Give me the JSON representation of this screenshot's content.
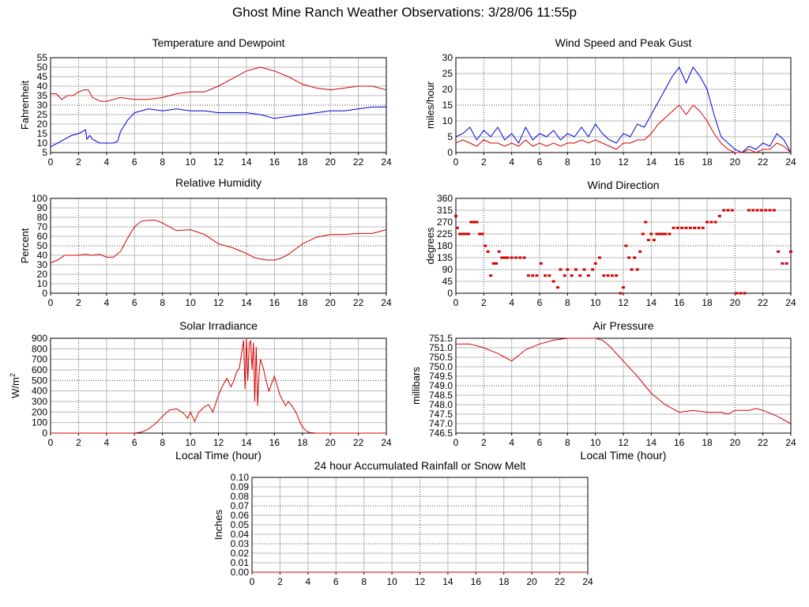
{
  "page": {
    "title": "Ghost Mine Ranch Weather Observations: 3/28/06 11:55p"
  },
  "chart_data": [
    {
      "id": "temperature",
      "type": "line",
      "title": "Temperature and Dewpoint",
      "xlabel": "",
      "ylabel": "Fahrenheit",
      "xlim": [
        0,
        24
      ],
      "ylim": [
        5,
        55
      ],
      "xticks": [
        "0",
        "2",
        "4",
        "6",
        "8",
        "10",
        "12",
        "14",
        "16",
        "18",
        "20",
        "22",
        "24"
      ],
      "yticks": [
        "5",
        "10",
        "15",
        "20",
        "25",
        "30",
        "35",
        "40",
        "45",
        "50",
        "55"
      ],
      "grid": true,
      "series": [
        {
          "color": "#d40000",
          "x": [
            0,
            0.4,
            0.8,
            1.2,
            1.6,
            2,
            2.4,
            2.7,
            3,
            3.6,
            4,
            5,
            6,
            7,
            8,
            9,
            10,
            11,
            12,
            13,
            14,
            14.5,
            15,
            15.5,
            16,
            17,
            18,
            19,
            20,
            21,
            22,
            23,
            24
          ],
          "y": [
            36,
            36,
            33,
            35,
            35,
            37,
            38,
            38,
            34,
            32,
            32,
            34,
            33,
            33,
            34,
            36,
            37,
            37,
            40,
            44,
            48,
            49,
            50,
            49,
            48,
            45,
            41,
            39,
            38,
            39,
            40,
            40,
            38
          ]
        },
        {
          "color": "#0000d4",
          "x": [
            0,
            0.5,
            1,
            1.5,
            2,
            2.5,
            2.6,
            2.8,
            3,
            3.5,
            4,
            4.5,
            4.8,
            5,
            5.5,
            6,
            7,
            8,
            9,
            10,
            11,
            12,
            13,
            14,
            15,
            16,
            17,
            18,
            19,
            20,
            21,
            22,
            23,
            24
          ],
          "y": [
            8,
            10,
            12,
            14,
            15,
            17,
            12,
            14,
            12,
            10,
            10,
            10,
            11,
            16,
            22,
            26,
            28,
            27,
            28,
            27,
            27,
            26,
            26,
            26,
            25,
            23,
            24,
            25,
            26,
            27,
            27,
            28,
            29,
            29
          ]
        }
      ]
    },
    {
      "id": "wind-speed",
      "type": "line",
      "title": "Wind Speed and Peak Gust",
      "xlabel": "",
      "ylabel": "miles/hour",
      "xlim": [
        0,
        24
      ],
      "ylim": [
        0,
        30
      ],
      "xticks": [
        "0",
        "2",
        "4",
        "6",
        "8",
        "10",
        "12",
        "14",
        "16",
        "18",
        "20",
        "22",
        "24"
      ],
      "yticks": [
        "0",
        "5",
        "10",
        "15",
        "20",
        "25",
        "30"
      ],
      "grid": true,
      "series": [
        {
          "color": "#0000d4",
          "x": [
            0,
            0.5,
            1,
            1.5,
            2,
            2.5,
            3,
            3.5,
            4,
            4.5,
            5,
            5.5,
            6,
            6.5,
            7,
            7.5,
            8,
            8.5,
            9,
            9.5,
            10,
            10.5,
            11,
            11.5,
            12,
            12.5,
            13,
            13.5,
            14,
            14.5,
            15,
            15.5,
            16,
            16.5,
            17,
            17.5,
            18,
            18.5,
            19,
            19.5,
            20,
            20.5,
            21,
            21.5,
            22,
            22.5,
            23,
            23.5,
            24
          ],
          "y": [
            5,
            6,
            8,
            4,
            7,
            5,
            8,
            4,
            6,
            3,
            8,
            4,
            6,
            5,
            7,
            4,
            6,
            5,
            8,
            5,
            9,
            6,
            4,
            3,
            6,
            5,
            9,
            8,
            12,
            16,
            20,
            24,
            27,
            22,
            27,
            24,
            20,
            12,
            5,
            3,
            1,
            0,
            2,
            1,
            3,
            2,
            6,
            4,
            0
          ]
        },
        {
          "color": "#d40000",
          "x": [
            0,
            0.5,
            1,
            1.5,
            2,
            2.5,
            3,
            3.5,
            4,
            4.5,
            5,
            5.5,
            6,
            6.5,
            7,
            7.5,
            8,
            8.5,
            9,
            9.5,
            10,
            10.5,
            11,
            11.5,
            12,
            12.5,
            13,
            13.5,
            14,
            14.5,
            15,
            15.5,
            16,
            16.5,
            17,
            17.5,
            18,
            18.5,
            19,
            19.5,
            20,
            20.5,
            21,
            21.5,
            22,
            22.5,
            23,
            23.5,
            24
          ],
          "y": [
            3,
            4,
            3,
            2,
            4,
            3,
            3,
            2,
            3,
            2,
            4,
            2,
            3,
            2,
            3,
            2,
            3,
            3,
            4,
            3,
            4,
            3,
            2,
            1,
            3,
            3,
            4,
            4,
            6,
            9,
            11,
            13,
            15,
            12,
            15,
            13,
            10,
            6,
            3,
            1,
            0,
            0,
            1,
            0,
            1,
            1,
            3,
            2,
            0
          ]
        }
      ]
    },
    {
      "id": "humidity",
      "type": "line",
      "title": "Relative Humidity",
      "xlabel": "",
      "ylabel": "Percent",
      "xlim": [
        0,
        24
      ],
      "ylim": [
        0,
        100
      ],
      "xticks": [
        "0",
        "2",
        "4",
        "6",
        "8",
        "10",
        "12",
        "14",
        "16",
        "18",
        "20",
        "22",
        "24"
      ],
      "yticks": [
        "0",
        "10",
        "20",
        "30",
        "40",
        "50",
        "60",
        "70",
        "80",
        "90",
        "100"
      ],
      "grid": true,
      "series": [
        {
          "color": "#d40000",
          "x": [
            0,
            0.5,
            1,
            1.5,
            2,
            2.5,
            3,
            3.5,
            4,
            4.5,
            5,
            5.5,
            6,
            6.5,
            7,
            7.5,
            8,
            9,
            10,
            11,
            12,
            13,
            14,
            14.5,
            15,
            15.5,
            16,
            16.5,
            17,
            18,
            19,
            20,
            21,
            22,
            23,
            24
          ],
          "y": [
            32,
            35,
            40,
            40,
            40,
            41,
            40,
            41,
            38,
            38,
            44,
            58,
            70,
            76,
            77,
            77,
            74,
            66,
            67,
            62,
            52,
            48,
            42,
            38,
            36,
            35,
            35,
            37,
            41,
            52,
            59,
            62,
            62,
            63,
            63,
            67
          ]
        }
      ]
    },
    {
      "id": "wind-direction",
      "type": "scatter",
      "title": "Wind Direction",
      "xlabel": "",
      "ylabel": "degrees",
      "xlim": [
        0,
        24
      ],
      "ylim": [
        0,
        360
      ],
      "xticks": [
        "0",
        "2",
        "4",
        "6",
        "8",
        "10",
        "12",
        "14",
        "16",
        "18",
        "20",
        "22",
        "24"
      ],
      "yticks": [
        "0",
        "45",
        "90",
        "135",
        "180",
        "225",
        "270",
        "315",
        "360"
      ],
      "grid": true,
      "series": [
        {
          "color": "#d40000",
          "x": [
            0,
            0.1,
            0.3,
            0.5,
            0.7,
            0.9,
            1.1,
            1.3,
            1.5,
            1.7,
            1.9,
            2.1,
            2.3,
            2.5,
            2.7,
            2.9,
            3.1,
            3.3,
            3.5,
            3.7,
            4,
            4.3,
            4.6,
            4.9,
            5.2,
            5.5,
            5.8,
            6.1,
            6.4,
            6.7,
            7,
            7.3,
            7.5,
            7.8,
            8,
            8.3,
            8.6,
            8.9,
            9.2,
            9.5,
            9.8,
            10,
            10.3,
            10.6,
            10.9,
            11.2,
            11.5,
            11.8,
            12,
            12.2,
            12.4,
            12.6,
            12.8,
            13,
            13.2,
            13.4,
            13.6,
            13.8,
            14,
            14.2,
            14.4,
            14.6,
            14.8,
            15,
            15.3,
            15.6,
            15.9,
            16.2,
            16.5,
            16.8,
            17.1,
            17.4,
            17.7,
            18,
            18.3,
            18.6,
            18.9,
            19.2,
            19.5,
            19.8,
            20.1,
            20.4,
            20.7,
            21,
            21.3,
            21.6,
            21.9,
            22.2,
            22.5,
            22.8,
            23.1,
            23.4,
            23.7,
            24
          ],
          "y": [
            293,
            248,
            225,
            225,
            225,
            225,
            270,
            270,
            270,
            225,
            225,
            180,
            158,
            67,
            113,
            113,
            158,
            135,
            135,
            135,
            135,
            135,
            135,
            135,
            67,
            67,
            67,
            113,
            67,
            67,
            45,
            22,
            90,
            67,
            90,
            67,
            90,
            67,
            90,
            67,
            90,
            113,
            135,
            67,
            67,
            67,
            67,
            0,
            22,
            180,
            135,
            90,
            135,
            90,
            158,
            225,
            270,
            202,
            225,
            202,
            225,
            225,
            225,
            225,
            225,
            248,
            248,
            248,
            248,
            248,
            248,
            248,
            248,
            270,
            270,
            270,
            293,
            315,
            315,
            315,
            0,
            0,
            0,
            315,
            315,
            315,
            315,
            315,
            315,
            315,
            158,
            113,
            113,
            158
          ]
        }
      ]
    },
    {
      "id": "solar",
      "type": "line",
      "title": "Solar Irradiance",
      "xlabel": "Local Time (hour)",
      "ylabel": "W/m",
      "ylabel_sup": "2",
      "xlim": [
        0,
        24
      ],
      "ylim": [
        0,
        900
      ],
      "xticks": [
        "0",
        "2",
        "4",
        "6",
        "8",
        "10",
        "12",
        "14",
        "16",
        "18",
        "20",
        "22",
        "24"
      ],
      "yticks": [
        "0",
        "100",
        "200",
        "300",
        "400",
        "500",
        "600",
        "700",
        "800",
        "900"
      ],
      "grid": true,
      "series": [
        {
          "color": "#d40000",
          "x": [
            0,
            6,
            6.5,
            7,
            7.5,
            8,
            8.5,
            9,
            9.5,
            9.8,
            10,
            10.3,
            10.6,
            11,
            11.3,
            11.6,
            12,
            12.3,
            12.6,
            12.9,
            13.1,
            13.3,
            13.5,
            13.7,
            13.8,
            13.9,
            14,
            14.1,
            14.2,
            14.3,
            14.4,
            14.5,
            14.6,
            14.7,
            14.8,
            14.9,
            15,
            15.2,
            15.4,
            15.6,
            16,
            16.4,
            16.8,
            17,
            17.3,
            17.6,
            17.9,
            18.2,
            18.5,
            19,
            24
          ],
          "y": [
            0,
            0,
            10,
            40,
            90,
            160,
            220,
            230,
            190,
            140,
            200,
            110,
            200,
            250,
            270,
            200,
            360,
            450,
            520,
            440,
            500,
            580,
            620,
            800,
            880,
            420,
            900,
            500,
            850,
            880,
            600,
            860,
            300,
            820,
            260,
            560,
            700,
            620,
            500,
            400,
            540,
            360,
            260,
            300,
            250,
            180,
            80,
            30,
            5,
            0,
            0
          ]
        }
      ]
    },
    {
      "id": "pressure",
      "type": "line",
      "title": "Air Pressure",
      "xlabel": "Local Time (hour)",
      "ylabel": "millibars",
      "xlim": [
        0,
        24
      ],
      "ylim": [
        746.5,
        751.5
      ],
      "xticks": [
        "0",
        "2",
        "4",
        "6",
        "8",
        "10",
        "12",
        "14",
        "16",
        "18",
        "20",
        "22",
        "24"
      ],
      "yticks": [
        "746.5",
        "747.0",
        "747.5",
        "748.0",
        "748.5",
        "749.0",
        "749.5",
        "750.0",
        "750.5",
        "751.0",
        "751.5"
      ],
      "grid": true,
      "series": [
        {
          "color": "#d40000",
          "x": [
            0,
            1,
            2,
            3,
            3.5,
            4,
            4.5,
            5,
            6,
            7,
            8,
            9,
            10,
            10.5,
            11,
            12,
            13,
            14,
            15,
            16,
            17,
            18,
            19,
            19.5,
            20,
            21,
            21.5,
            22,
            23,
            24
          ],
          "y": [
            751.2,
            751.2,
            751.0,
            750.7,
            750.5,
            750.3,
            750.6,
            750.9,
            751.2,
            751.4,
            751.5,
            751.5,
            751.5,
            751.4,
            751.1,
            750.3,
            749.5,
            748.6,
            748.0,
            747.6,
            747.7,
            747.6,
            747.6,
            747.5,
            747.7,
            747.7,
            747.8,
            747.7,
            747.4,
            747.0
          ]
        }
      ]
    },
    {
      "id": "rainfall",
      "type": "line",
      "title": "24 hour Accumulated Rainfall or Snow Melt",
      "xlabel": "",
      "ylabel": "Inches",
      "xlim": [
        0,
        24
      ],
      "ylim": [
        0,
        0.1
      ],
      "xticks": [
        "0",
        "2",
        "4",
        "6",
        "8",
        "10",
        "12",
        "14",
        "16",
        "18",
        "20",
        "22",
        "24"
      ],
      "yticks": [
        "0.00",
        "0.01",
        "0.02",
        "0.03",
        "0.04",
        "0.05",
        "0.06",
        "0.07",
        "0.08",
        "0.09",
        "0.10"
      ],
      "grid": true,
      "series": [
        {
          "color": "#d40000",
          "x": [
            0,
            24
          ],
          "y": [
            0,
            0
          ]
        }
      ]
    }
  ]
}
